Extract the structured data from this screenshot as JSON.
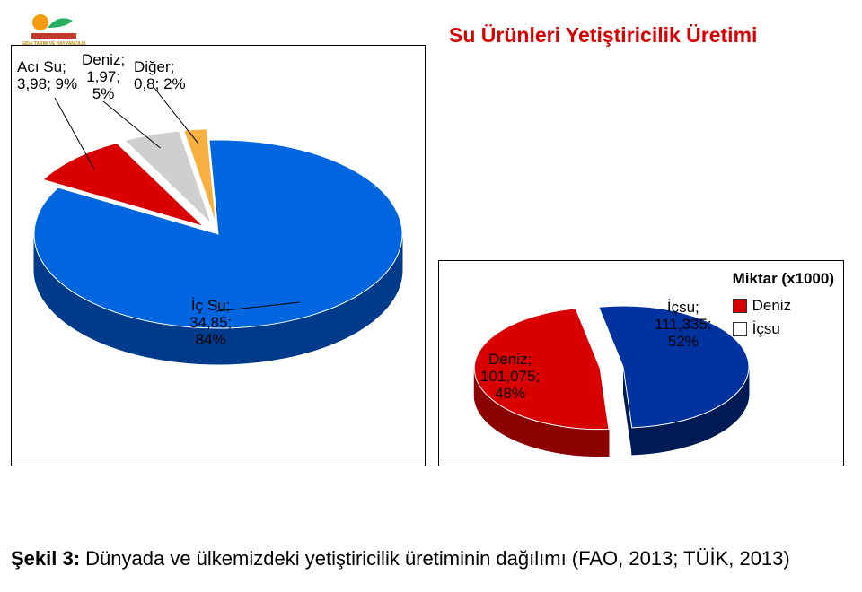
{
  "title": "Su Ürünleri Yetiştiricilik Üretimi",
  "logo": {
    "main_text": "GIDA TARIM VE HAYVANCILIK",
    "sub_text": "BAKANLIĞI",
    "sun_color": "#f39c12",
    "leaf_color": "#27ae60",
    "red": "#c0392b",
    "text_color": "#b8860b"
  },
  "left_chart": {
    "type": "pie_3d",
    "background_color": "#ffffff",
    "border_color": "#000000",
    "slices": [
      {
        "name": "İç Su",
        "value": 34.85,
        "pct": 84,
        "color": "#0066e0",
        "side": "#003a8a"
      },
      {
        "name": "Acı Su",
        "value": 3.98,
        "pct": 9,
        "color": "#d80000",
        "side": "#8b0000"
      },
      {
        "name": "Deniz",
        "value": 1.97,
        "pct": 5,
        "color": "#cfcfcf",
        "side": "#8a8a8a"
      },
      {
        "name": "Diğer",
        "value": 0.8,
        "pct": 2,
        "color": "#f5b041",
        "side": "#b07818"
      }
    ],
    "labels": {
      "aci": "Acı Su;\n3,98; 9%",
      "deniz": "Deniz;\n1,97;\n5%",
      "diger": "Diğer;\n0,8; 2%",
      "ic": "İç Su;\n34,85;\n84%"
    },
    "label_fontsize": 17
  },
  "right_chart": {
    "type": "pie_3d",
    "background_color": "#ffffff",
    "border_color": "#000000",
    "legend_title": "Miktar (x1000)",
    "slices": [
      {
        "name": "Deniz",
        "value": 101075,
        "pct": 48,
        "color": "#d80000",
        "side": "#8b0000"
      },
      {
        "name": "İçsu",
        "value": 111335,
        "pct": 52,
        "color": "#0033a0",
        "side": "#001a55"
      }
    ],
    "labels": {
      "deniz": "Deniz;\n101,075;\n48%",
      "icsu": "İçsu;\n111,335;\n52%"
    },
    "legend_items": [
      {
        "label": "Deniz",
        "color": "#d80000"
      },
      {
        "label": "İçsu",
        "color": "#ffffff"
      }
    ],
    "legend_fontsize": 17
  },
  "caption": {
    "prefix": "Şekil 3: ",
    "text": "Dünyada ve ülkemizdeki yetiştiricilik üretiminin dağılımı (FAO, 2013; TÜİK, 2013)",
    "fontsize": 22
  }
}
